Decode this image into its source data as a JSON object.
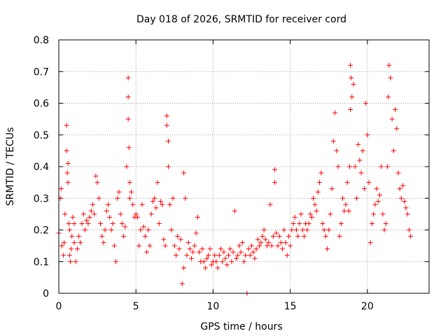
{
  "chart_data": {
    "type": "scatter",
    "title": "Day 018 of 2026, SRMTID for receiver cord",
    "xlabel": "GPS time / hours",
    "ylabel": "SRMTID / TECUs",
    "xlim": [
      0,
      24
    ],
    "ylim": [
      0,
      0.8
    ],
    "xticks": [
      0,
      5,
      10,
      15,
      20
    ],
    "xtick_labels": [
      "0",
      "5",
      "10",
      "15",
      "20"
    ],
    "yticks": [
      0,
      0.1,
      0.2,
      0.3,
      0.4,
      0.5,
      0.6,
      0.7,
      0.8
    ],
    "ytick_labels": [
      "0",
      "0.1",
      "0.2",
      "0.3",
      "0.4",
      "0.5",
      "0.6",
      "0.7",
      "0.8"
    ],
    "grid": true,
    "marker": "plus",
    "color": "#ff0000",
    "series": [
      {
        "name": "SRMTID",
        "x": [
          0.0,
          0.1,
          0.15,
          0.2,
          0.3,
          0.35,
          0.4,
          0.5,
          0.5,
          0.55,
          0.6,
          0.6,
          0.65,
          0.7,
          0.7,
          0.75,
          0.8,
          0.85,
          0.9,
          1.0,
          1.0,
          1.1,
          1.2,
          1.3,
          1.4,
          1.5,
          1.6,
          1.7,
          1.8,
          1.9,
          2.0,
          2.1,
          2.2,
          2.3,
          2.4,
          2.5,
          2.6,
          2.7,
          2.8,
          2.9,
          3.0,
          3.1,
          3.2,
          3.3,
          3.4,
          3.5,
          3.6,
          3.7,
          3.8,
          3.9,
          4.0,
          4.1,
          4.2,
          4.3,
          4.4,
          4.5,
          4.5,
          4.5,
          4.55,
          4.6,
          4.6,
          4.7,
          4.8,
          4.9,
          5.0,
          5.1,
          5.2,
          5.3,
          5.4,
          5.5,
          5.6,
          5.7,
          5.8,
          5.9,
          6.0,
          6.1,
          6.2,
          6.3,
          6.4,
          6.5,
          6.6,
          6.7,
          6.8,
          6.9,
          7.0,
          7.0,
          7.1,
          7.1,
          7.2,
          7.3,
          7.4,
          7.5,
          7.6,
          7.7,
          7.8,
          7.9,
          8.0,
          8.1,
          8.1,
          8.2,
          8.3,
          8.4,
          8.5,
          8.6,
          8.7,
          8.8,
          8.9,
          9.0,
          9.1,
          9.2,
          9.3,
          9.4,
          9.5,
          9.6,
          9.7,
          9.8,
          9.9,
          10.0,
          10.1,
          10.2,
          10.3,
          10.4,
          10.5,
          10.6,
          10.7,
          10.8,
          10.9,
          11.0,
          11.1,
          11.2,
          11.3,
          11.4,
          11.5,
          11.6,
          11.7,
          11.8,
          11.9,
          12.0,
          12.1,
          12.2,
          12.3,
          12.4,
          12.5,
          12.6,
          12.7,
          12.8,
          12.9,
          13.0,
          13.1,
          13.2,
          13.3,
          13.4,
          13.5,
          13.6,
          13.7,
          13.8,
          13.9,
          14.0,
          14.0,
          14.1,
          14.2,
          14.3,
          14.4,
          14.5,
          14.6,
          14.7,
          14.8,
          14.9,
          15.0,
          15.1,
          15.2,
          15.3,
          15.4,
          15.5,
          15.6,
          15.7,
          15.8,
          15.9,
          16.0,
          16.1,
          16.2,
          16.3,
          16.4,
          16.5,
          16.6,
          16.7,
          16.8,
          16.9,
          17.0,
          17.1,
          17.2,
          17.3,
          17.4,
          17.5,
          17.6,
          17.7,
          17.8,
          17.9,
          18.0,
          18.1,
          18.2,
          18.3,
          18.4,
          18.5,
          18.6,
          18.7,
          18.8,
          18.85,
          18.9,
          18.9,
          18.95,
          19.0,
          19.1,
          19.2,
          19.3,
          19.4,
          19.5,
          19.6,
          19.7,
          19.8,
          19.9,
          20.0,
          20.1,
          20.2,
          20.3,
          20.4,
          20.5,
          20.6,
          20.7,
          20.8,
          20.9,
          21.0,
          21.1,
          21.2,
          21.3,
          21.35,
          21.4,
          21.5,
          21.6,
          21.7,
          21.8,
          21.9,
          22.0,
          22.1,
          22.2,
          22.3,
          22.4,
          22.5,
          22.6,
          22.7,
          22.8
        ],
        "y": [
          0.19,
          0.3,
          0.33,
          0.15,
          0.12,
          0.16,
          0.25,
          0.53,
          0.45,
          0.38,
          0.41,
          0.35,
          0.22,
          0.2,
          0.12,
          0.1,
          0.14,
          0.18,
          0.24,
          0.22,
          0.16,
          0.1,
          0.14,
          0.18,
          0.16,
          0.22,
          0.25,
          0.2,
          0.23,
          0.22,
          0.24,
          0.26,
          0.28,
          0.25,
          0.37,
          0.35,
          0.3,
          0.22,
          0.18,
          0.16,
          0.2,
          0.26,
          0.28,
          0.24,
          0.2,
          0.22,
          0.15,
          0.1,
          0.3,
          0.32,
          0.25,
          0.22,
          0.18,
          0.21,
          0.4,
          0.68,
          0.62,
          0.55,
          0.46,
          0.35,
          0.3,
          0.32,
          0.28,
          0.24,
          0.25,
          0.24,
          0.15,
          0.2,
          0.28,
          0.21,
          0.18,
          0.13,
          0.2,
          0.15,
          0.25,
          0.29,
          0.3,
          0.27,
          0.35,
          0.22,
          0.29,
          0.28,
          0.17,
          0.15,
          0.56,
          0.53,
          0.48,
          0.4,
          0.28,
          0.2,
          0.3,
          0.15,
          0.12,
          0.18,
          0.14,
          0.17,
          0.03,
          0.08,
          0.38,
          0.3,
          0.12,
          0.16,
          0.14,
          0.11,
          0.13,
          0.15,
          0.19,
          0.24,
          0.13,
          0.1,
          0.14,
          0.1,
          0.08,
          0.11,
          0.12,
          0.14,
          0.09,
          0.1,
          0.12,
          0.1,
          0.08,
          0.12,
          0.14,
          0.1,
          0.13,
          0.11,
          0.09,
          0.12,
          0.14,
          0.1,
          0.13,
          0.26,
          0.11,
          0.12,
          0.15,
          0.13,
          0.16,
          0.1,
          0.12,
          0.0,
          0.14,
          0.12,
          0.15,
          0.13,
          0.11,
          0.14,
          0.17,
          0.15,
          0.16,
          0.18,
          0.2,
          0.17,
          0.15,
          0.16,
          0.28,
          0.15,
          0.18,
          0.39,
          0.35,
          0.19,
          0.15,
          0.18,
          0.16,
          0.14,
          0.2,
          0.16,
          0.12,
          0.18,
          0.15,
          0.2,
          0.22,
          0.24,
          0.2,
          0.18,
          0.22,
          0.25,
          0.2,
          0.18,
          0.22,
          0.2,
          0.22,
          0.25,
          0.24,
          0.3,
          0.28,
          0.26,
          0.32,
          0.35,
          0.38,
          0.22,
          0.2,
          0.18,
          0.14,
          0.2,
          0.25,
          0.33,
          0.48,
          0.57,
          0.45,
          0.4,
          0.18,
          0.22,
          0.3,
          0.26,
          0.28,
          0.35,
          0.26,
          0.4,
          0.58,
          0.72,
          0.68,
          0.62,
          0.66,
          0.4,
          0.3,
          0.47,
          0.42,
          0.38,
          0.45,
          0.33,
          0.6,
          0.5,
          0.35,
          0.16,
          0.22,
          0.25,
          0.28,
          0.33,
          0.29,
          0.31,
          0.4,
          0.25,
          0.2,
          0.22,
          0.4,
          0.62,
          0.72,
          0.68,
          0.55,
          0.45,
          0.58,
          0.52,
          0.38,
          0.33,
          0.3,
          0.34,
          0.29,
          0.27,
          0.25,
          0.2,
          0.18
        ]
      }
    ]
  }
}
